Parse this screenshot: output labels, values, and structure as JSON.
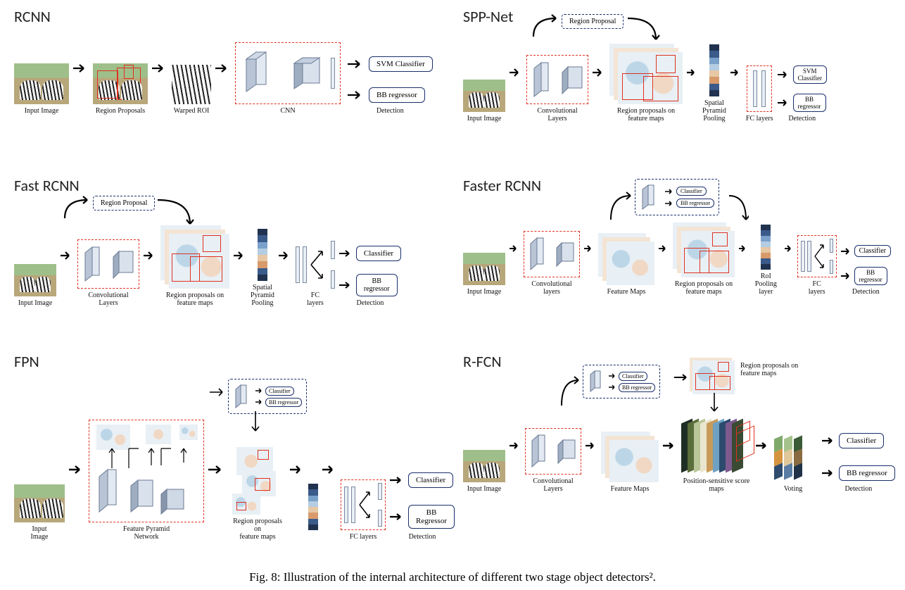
{
  "caption": "Fig. 8: Illustration of the internal architecture of different two stage object detectors².",
  "colors": {
    "red": "#e03020",
    "navy": "#1a2f6b",
    "arrow": "#000000",
    "spp_palette": [
      "#20324f",
      "#3a5a8a",
      "#7aa1c9",
      "#b5cde2",
      "#e7c7a4",
      "#d89a6b",
      "#3a5a8a",
      "#20324f"
    ],
    "scoremap_palette": [
      "#1f2e24",
      "#5a6e3c",
      "#b9c697",
      "#eae5cf",
      "#c79a5a",
      "#6ea1c2",
      "#2c4a6e",
      "#7e5a8f",
      "#394b33"
    ],
    "voting_palette": [
      "#7fa96a",
      "#d4943f",
      "#2f4c6f",
      "#a6c28c",
      "#e0c79a",
      "#5a7ca4",
      "#3b5a36",
      "#8a6a40",
      "#203247"
    ]
  },
  "panels": {
    "rcnn": {
      "title": "RCNN",
      "stages": [
        "Input Image",
        "Region Proposals",
        "Warped ROI",
        "CNN",
        "Detection"
      ],
      "outputs": [
        "SVM Classifier",
        "BB regressor"
      ]
    },
    "sppnet": {
      "title": "SPP-Net",
      "region_prop_label": "Region Proposal",
      "stages": [
        "Input Image",
        "Convolutional\nLayers",
        "Region proposals on\nfeature maps",
        "Spatial\nPyramid\nPooling",
        "FC layers",
        "Detection"
      ],
      "outputs": [
        "SVM\nClassifier",
        "BB\nregressor"
      ]
    },
    "fastrcnn": {
      "title": "Fast RCNN",
      "region_prop_label": "Region Proposal",
      "stages": [
        "Input Image",
        "Convolutional\nLayers",
        "Region proposals on\nfeature maps",
        "Spatial\nPyramid\nPooling",
        "FC\nlayers",
        "Detection"
      ],
      "outputs": [
        "Classifier",
        "BB\nregressor"
      ]
    },
    "fasterrcnn": {
      "title": "Faster RCNN",
      "rpn_labels": [
        "Classifier",
        "BB regressor"
      ],
      "stages": [
        "Input Image",
        "Convolutional layers",
        "Feature Maps",
        "Region proposals on\nfeature maps",
        "RoI Pooling\nlayer",
        "FC\nlayers",
        "Detection"
      ],
      "outputs": [
        "Classifier",
        "BB\nregressor"
      ]
    },
    "fpn": {
      "title": "FPN",
      "rpn_labels": [
        "Classifier",
        "BB regressor"
      ],
      "stages": [
        "Input\nImage",
        "Feature Pyramid\nNetwork",
        "Region proposals on\nfeature maps",
        "FC layers",
        "Detection"
      ],
      "outputs": [
        "Classifier",
        "BB\nRegressor"
      ]
    },
    "rfcn": {
      "title": "R-FCN",
      "rpn_labels": [
        "Classifier",
        "BB regressor"
      ],
      "rp_label": "Region proposals on\nfeature maps",
      "stages": [
        "Input Image",
        "Convolutional Layers",
        "Feature Maps",
        "Position-sensitive score maps",
        "Voting",
        "Detection"
      ],
      "outputs": [
        "Classifier",
        "BB regressor"
      ]
    }
  }
}
